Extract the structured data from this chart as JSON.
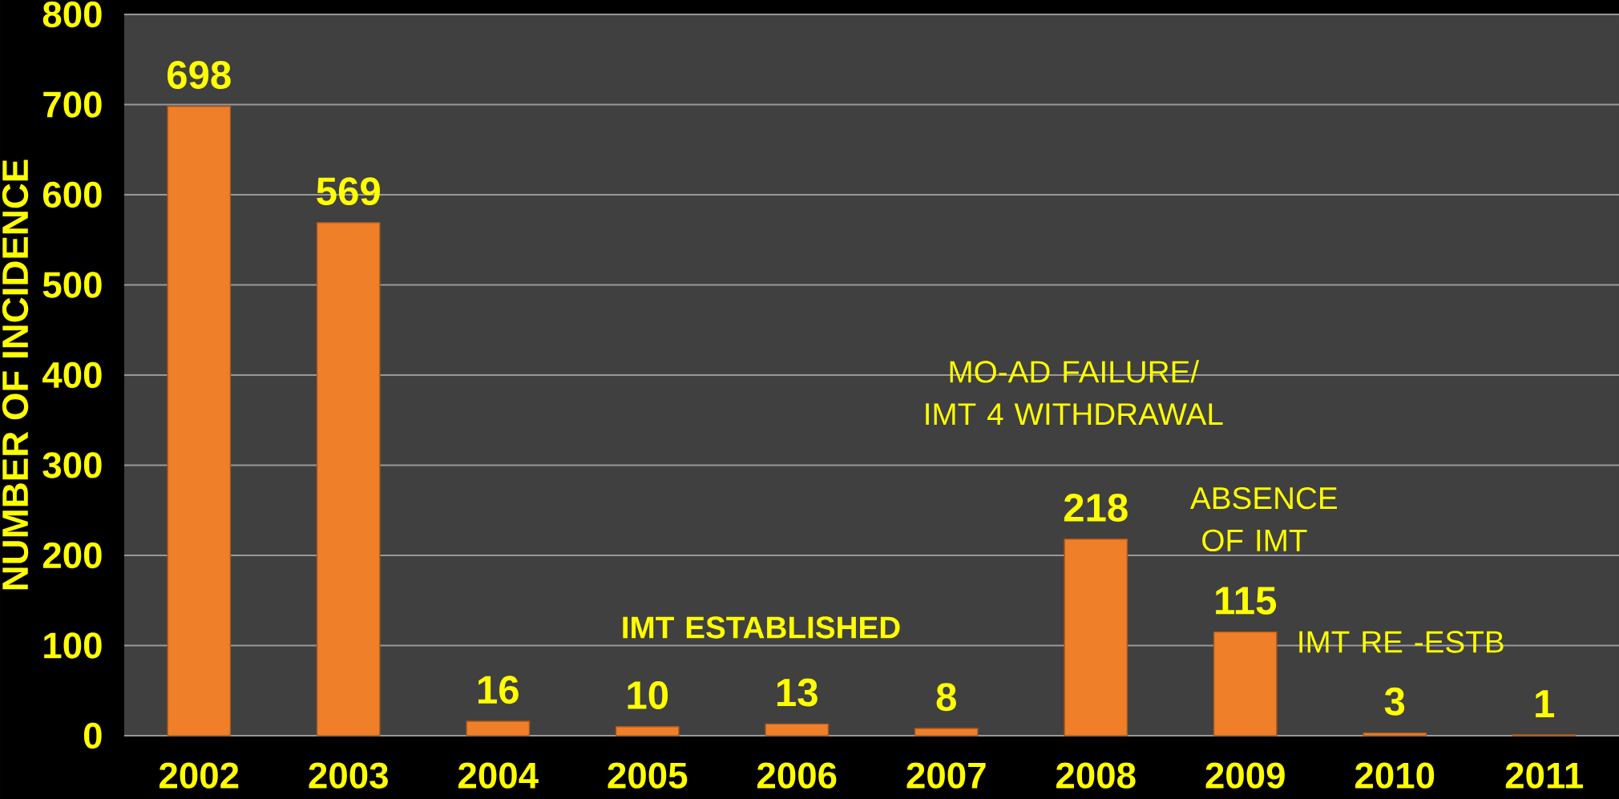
{
  "chart_data": {
    "type": "bar",
    "ylabel": "NUMBER OF INCIDENCE",
    "categories": [
      "2002",
      "2003",
      "2004",
      "2005",
      "2006",
      "2007",
      "2008",
      "2009",
      "2010",
      "2011"
    ],
    "values": [
      698,
      569,
      16,
      10,
      13,
      8,
      218,
      115,
      3,
      1
    ],
    "color": "#f07f2a",
    "data_labels": true,
    "ylim": [
      0,
      800
    ],
    "yticks": [
      0,
      100,
      200,
      300,
      400,
      500,
      600,
      700,
      800
    ],
    "grid": "y",
    "annotations": [
      "MO-AD FAILURE/ IMT 4 WITHDRAWAL",
      "ABSENCE OF IMT",
      "IMT ESTABLISHED",
      "IMT RE -ESTB"
    ]
  }
}
